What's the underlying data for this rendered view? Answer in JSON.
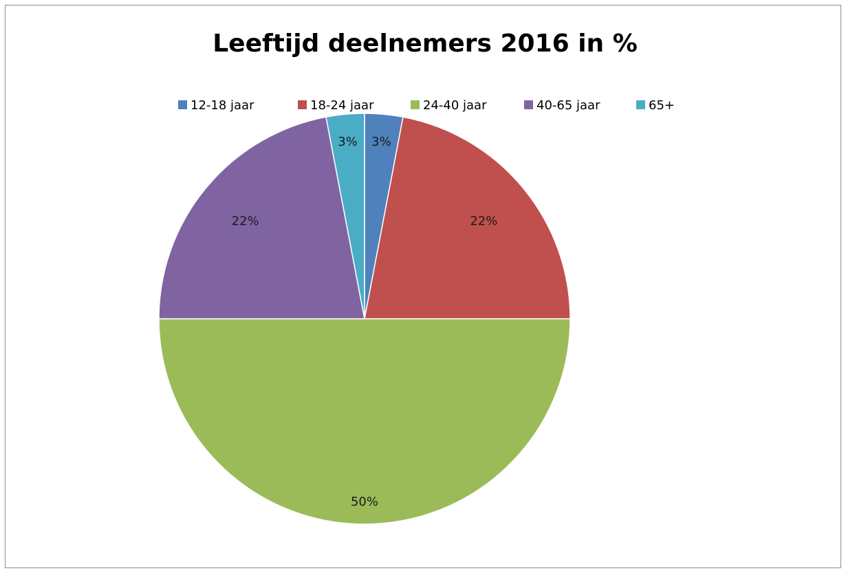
{
  "chart_data": {
    "type": "pie",
    "title": "Leeftijd deelnemers 2016 in %",
    "categories": [
      "12-18 jaar",
      "18-24 jaar",
      "24-40 jaar",
      "40-65 jaar",
      "65+"
    ],
    "values": [
      3,
      22,
      50,
      22,
      3
    ],
    "data_labels": [
      "3%",
      "22%",
      "50%",
      "22%",
      "3%"
    ],
    "colors": [
      "#4F81BD",
      "#C0504D",
      "#9BBB59",
      "#8064A2",
      "#4BACC6"
    ],
    "legend": {
      "position": "top"
    },
    "start": "top",
    "direction": "clockwise"
  }
}
